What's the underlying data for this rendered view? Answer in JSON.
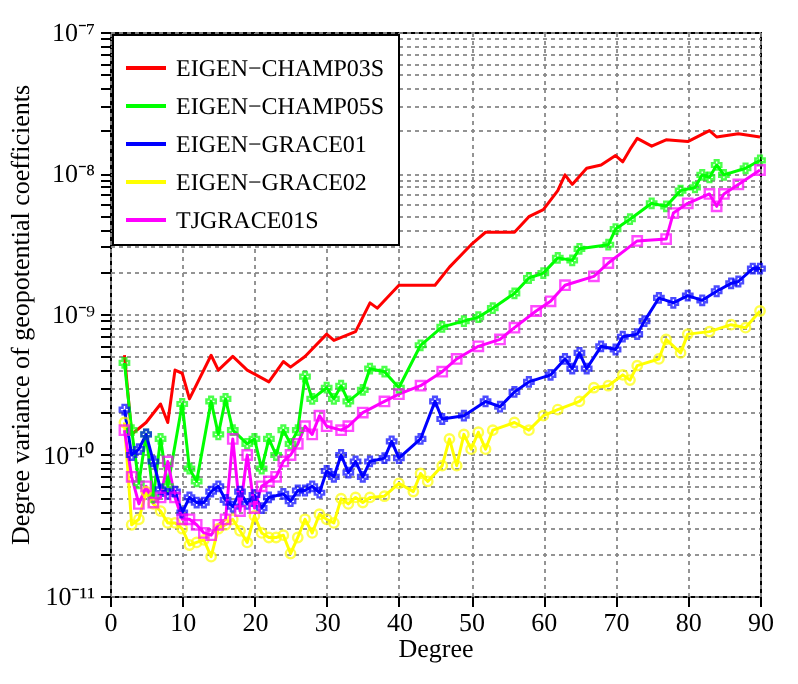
{
  "chart_data": {
    "type": "line",
    "xlabel": "Degree",
    "ylabel": "Degree variance of geopotential coefficients",
    "log": "y",
    "grid": true,
    "legend": "top left",
    "xlim": [
      0,
      90
    ],
    "xticks": [
      0,
      10,
      20,
      30,
      40,
      50,
      60,
      70,
      80,
      90
    ],
    "ylim": [
      1e-11,
      1e-07
    ],
    "yticks": [
      {
        "value": 1e-11,
        "label": "10⁻¹¹"
      },
      {
        "value": 1e-10,
        "label": "10⁻¹⁰"
      },
      {
        "value": 1e-09,
        "label": "10⁻⁹"
      },
      {
        "value": 1e-08,
        "label": "10⁻⁸"
      },
      {
        "value": 1e-07,
        "label": "10⁻⁷"
      }
    ],
    "series": [
      {
        "name": "EIGEN−CHAMP03S",
        "color": "#ff0000",
        "marker": "none",
        "x": [
          2,
          3,
          5,
          7,
          8,
          9,
          10,
          11,
          14,
          15,
          17,
          19,
          22,
          24,
          25,
          27,
          30,
          31,
          34,
          36,
          37,
          40,
          45,
          47,
          50,
          52,
          56,
          58,
          60,
          62,
          63,
          64,
          66,
          68,
          70,
          71,
          72,
          73,
          75,
          77,
          80,
          83,
          84,
          87,
          90
        ],
        "values": [
          5.1e-10,
          1.4e-10,
          1.7e-10,
          2.3e-10,
          1.7e-10,
          4e-10,
          3.8e-10,
          2.5e-10,
          5.1e-10,
          4e-10,
          5e-10,
          4e-10,
          3.3e-10,
          4.6e-10,
          4.2e-10,
          5e-10,
          7.2e-10,
          6.5e-10,
          7.5e-10,
          1.2e-09,
          1.1e-09,
          1.6e-09,
          1.6e-09,
          2.15e-09,
          3.1e-09,
          3.8e-09,
          3.8e-09,
          4.9e-09,
          5.5e-09,
          7.5e-09,
          9.7e-09,
          8.3e-09,
          1.08e-08,
          1.14e-08,
          1.33e-08,
          1.2e-08,
          1.47e-08,
          1.76e-08,
          1.55e-08,
          1.72e-08,
          1.67e-08,
          2e-08,
          1.8e-08,
          1.9e-08,
          1.8e-08
        ]
      },
      {
        "name": "EIGEN−CHAMP05S",
        "color": "#00ff00",
        "marker": "cross",
        "x": [
          2,
          3,
          4,
          5,
          6,
          7,
          8,
          10,
          11,
          12,
          14,
          15,
          16,
          17,
          19,
          20,
          21,
          22,
          23,
          24,
          25,
          26,
          27,
          28,
          30,
          31,
          32,
          33,
          35,
          36,
          38,
          40,
          43,
          46,
          49,
          51,
          53,
          56,
          58,
          60,
          62,
          64,
          65,
          69,
          70,
          72,
          75,
          77,
          79,
          81,
          82,
          83,
          84,
          85,
          88,
          90
        ],
        "values": [
          4.5e-10,
          1.5e-10,
          6.3e-11,
          1.4e-10,
          5e-11,
          1.3e-10,
          6e-11,
          2.3e-10,
          8e-11,
          6.5e-11,
          2.4e-10,
          1.4e-10,
          2.5e-10,
          1.5e-10,
          1.2e-10,
          1.3e-10,
          8e-11,
          1.3e-10,
          1e-10,
          1.5e-10,
          1.2e-10,
          1.5e-10,
          3.6e-10,
          2.5e-10,
          3e-10,
          2.5e-10,
          3.1e-10,
          2.4e-10,
          2.9e-10,
          4.1e-10,
          3.9e-10,
          3e-10,
          6e-10,
          8.1e-10,
          8.9e-10,
          9.5e-10,
          1.1e-09,
          1.4e-09,
          1.8e-09,
          1.95e-09,
          2.5e-09,
          2.4e-09,
          2.9e-09,
          3.1e-09,
          4e-09,
          4.7e-09,
          6.1e-09,
          5.8e-09,
          7.5e-09,
          7.9e-09,
          9.7e-09,
          9.3e-09,
          1.14e-08,
          9.7e-09,
          1.08e-08,
          1.23e-08
        ]
      },
      {
        "name": "EIGEN−GRACE01",
        "color": "#0000ff",
        "marker": "cross",
        "x": [
          2,
          3,
          4,
          5,
          6,
          7,
          8,
          9,
          10,
          11,
          12,
          13,
          14,
          15,
          16,
          17,
          18,
          19,
          20,
          21,
          22,
          24,
          25,
          26,
          27,
          28,
          29,
          30,
          31,
          32,
          33,
          34,
          35,
          36,
          38,
          39,
          40,
          43,
          45,
          46,
          49,
          52,
          54,
          56,
          58,
          61,
          63,
          64,
          65,
          66,
          68,
          70,
          71,
          73,
          74,
          76,
          78,
          80,
          82,
          84,
          86,
          87,
          89,
          90
        ],
        "values": [
          2.1e-10,
          1e-10,
          1.1e-10,
          1.4e-10,
          9e-11,
          5.7e-11,
          5.3e-11,
          5.5e-11,
          3.9e-11,
          5e-11,
          4.6e-11,
          4.6e-11,
          5.5e-11,
          6e-11,
          4.8e-11,
          4.3e-11,
          5.5e-11,
          4.5e-11,
          5.2e-11,
          4.2e-11,
          5e-11,
          5.3e-11,
          4.7e-11,
          5.6e-11,
          5.6e-11,
          6e-11,
          5.4e-11,
          7.7e-11,
          7e-11,
          1e-10,
          7.5e-11,
          9e-11,
          7e-11,
          9e-11,
          9.5e-11,
          1.25e-10,
          9.5e-11,
          1.3e-10,
          2.4e-10,
          1.8e-10,
          1.9e-10,
          2.4e-10,
          2.2e-10,
          2.8e-10,
          3.3e-10,
          3.7e-10,
          4.8e-10,
          4.1e-10,
          5.3e-10,
          4.1e-10,
          5.9e-10,
          5.6e-10,
          6.9e-10,
          7.2e-10,
          8.9e-10,
          1.3e-09,
          1.2e-09,
          1.35e-09,
          1.25e-09,
          1.45e-09,
          1.65e-09,
          1.7e-09,
          2.1e-09,
          2.1e-09
        ]
      },
      {
        "name": "EIGEN−GRACE02",
        "color": "#ffff00",
        "marker": "circle",
        "x": [
          2,
          3,
          4,
          5,
          6,
          7,
          8,
          9,
          10,
          11,
          12,
          13,
          14,
          15,
          16,
          17,
          18,
          19,
          20,
          21,
          22,
          23,
          24,
          25,
          26,
          27,
          28,
          29,
          30,
          31,
          32,
          33,
          34,
          35,
          36,
          38,
          40,
          42,
          43,
          44,
          46,
          47,
          48,
          49,
          50,
          51,
          52,
          53,
          56,
          58,
          60,
          62,
          65,
          67,
          69,
          71,
          72,
          73,
          76,
          77,
          79,
          80,
          83,
          86,
          88,
          90
        ],
        "values": [
          1.7e-10,
          3.2e-11,
          3.5e-11,
          5.5e-11,
          4.5e-11,
          4e-11,
          3.3e-11,
          3.3e-11,
          3e-11,
          2.3e-11,
          2.4e-11,
          2.5e-11,
          1.9e-11,
          3e-11,
          3.2e-11,
          3.5e-11,
          2.9e-11,
          2.4e-11,
          3.7e-11,
          2.8e-11,
          2.6e-11,
          2.6e-11,
          2.7e-11,
          2e-11,
          2.6e-11,
          3.5e-11,
          2.8e-11,
          3.8e-11,
          3.5e-11,
          3.3e-11,
          4.9e-11,
          4.5e-11,
          5e-11,
          4.6e-11,
          5e-11,
          5.1e-11,
          6.3e-11,
          5.5e-11,
          7.4e-11,
          6.5e-11,
          8.4e-11,
          1.3e-10,
          8.4e-11,
          1.4e-10,
          1.1e-10,
          1.45e-10,
          1.1e-10,
          1.5e-10,
          1.7e-10,
          1.5e-10,
          1.9e-10,
          2.1e-10,
          2.4e-10,
          3e-10,
          3.1e-10,
          3.7e-10,
          3.4e-10,
          4.3e-10,
          4.8e-10,
          6.6e-10,
          5.3e-10,
          7.2e-10,
          7.5e-10,
          8.4e-10,
          8e-10,
          1.05e-09
        ]
      },
      {
        "name": "TJGRACE01S",
        "color": "#ff00ff",
        "marker": "square",
        "x": [
          2,
          3,
          4,
          5,
          6,
          7,
          8,
          9,
          10,
          11,
          12,
          13,
          14,
          15,
          16,
          17,
          18,
          19,
          20,
          21,
          22,
          23,
          24,
          25,
          26,
          27,
          28,
          29,
          30,
          32,
          33,
          35,
          38,
          40,
          43,
          46,
          48,
          51,
          54,
          56,
          59,
          61,
          63,
          67,
          69,
          73,
          77,
          78,
          80,
          83,
          84,
          85,
          87,
          90
        ],
        "values": [
          1.5e-10,
          7e-11,
          4.5e-11,
          6e-11,
          4.6e-11,
          5e-11,
          9e-11,
          5e-11,
          3.5e-11,
          3.5e-11,
          3.2e-11,
          2.8e-11,
          2.7e-11,
          3.2e-11,
          3.5e-11,
          1.3e-10,
          4e-11,
          1e-10,
          4.2e-11,
          6e-11,
          6.5e-11,
          7e-11,
          9e-11,
          1e-10,
          1.2e-10,
          1.6e-10,
          1.4e-10,
          1.9e-10,
          1.6e-10,
          1.5e-10,
          1.6e-10,
          2e-10,
          2.4e-10,
          2.7e-10,
          3.1e-10,
          3.9e-10,
          4.8e-10,
          5.9e-10,
          6.6e-10,
          8e-10,
          1.05e-09,
          1.23e-09,
          1.6e-09,
          1.85e-09,
          2.3e-09,
          3.3e-09,
          3.4e-09,
          5.2e-09,
          6.1e-09,
          7.1e-09,
          5.8e-09,
          7.1e-09,
          8.3e-09,
          1.05e-08
        ]
      }
    ]
  }
}
